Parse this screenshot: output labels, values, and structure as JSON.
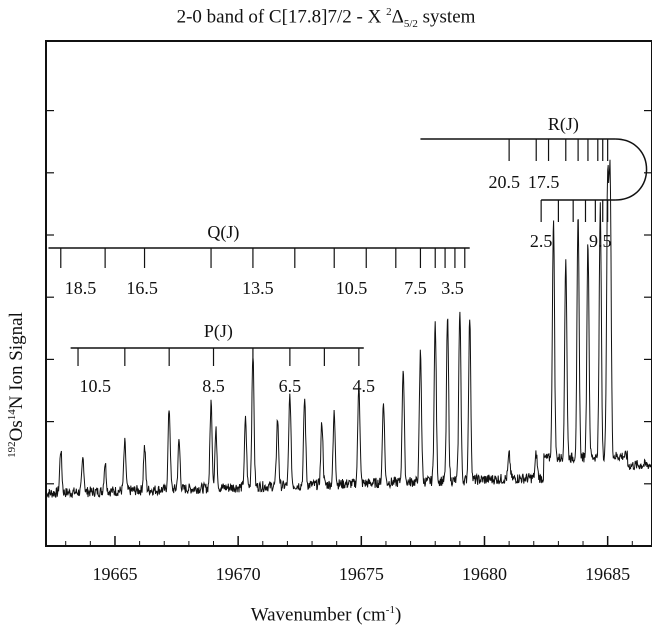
{
  "chart_data": {
    "type": "line",
    "title": {
      "prefix": "2-0 band of C[17.8]7/2 - X ",
      "sup": "2",
      "delta": "Δ",
      "sub": "5/2",
      "suffix": " system"
    },
    "xlabel": {
      "main": "Wavenumber (cm",
      "sup": "-1",
      "end": ")"
    },
    "ylabel": {
      "sup1": "192",
      "part1": "Os",
      "sup2": "14",
      "part2": "N Ion Signal"
    },
    "xlim": [
      19662.2,
      19686.8
    ],
    "x_ticks": [
      "19665",
      "19670",
      "19675",
      "19680",
      "19685"
    ],
    "grid": false,
    "peaks": [
      {
        "x": 19662.8,
        "h": 0.09
      },
      {
        "x": 19663.7,
        "h": 0.07
      },
      {
        "x": 19664.6,
        "h": 0.06
      },
      {
        "x": 19665.4,
        "h": 0.1
      },
      {
        "x": 19666.2,
        "h": 0.09
      },
      {
        "x": 19667.2,
        "h": 0.17
      },
      {
        "x": 19667.6,
        "h": 0.1
      },
      {
        "x": 19668.9,
        "h": 0.18
      },
      {
        "x": 19669.1,
        "h": 0.12
      },
      {
        "x": 19670.3,
        "h": 0.14
      },
      {
        "x": 19670.6,
        "h": 0.28
      },
      {
        "x": 19671.6,
        "h": 0.14
      },
      {
        "x": 19672.1,
        "h": 0.19
      },
      {
        "x": 19672.7,
        "h": 0.18
      },
      {
        "x": 19673.4,
        "h": 0.13
      },
      {
        "x": 19673.9,
        "h": 0.15
      },
      {
        "x": 19674.9,
        "h": 0.21
      },
      {
        "x": 19675.9,
        "h": 0.17
      },
      {
        "x": 19676.7,
        "h": 0.24
      },
      {
        "x": 19677.4,
        "h": 0.27
      },
      {
        "x": 19678.0,
        "h": 0.33
      },
      {
        "x": 19678.5,
        "h": 0.34
      },
      {
        "x": 19679.0,
        "h": 0.36
      },
      {
        "x": 19679.4,
        "h": 0.34
      },
      {
        "x": 19681.0,
        "h": 0.05
      },
      {
        "x": 19682.1,
        "h": 0.05
      },
      {
        "x": 19682.8,
        "h": 0.5
      },
      {
        "x": 19683.3,
        "h": 0.42
      },
      {
        "x": 19683.8,
        "h": 0.5
      },
      {
        "x": 19684.2,
        "h": 0.45
      },
      {
        "x": 19684.7,
        "h": 0.52
      },
      {
        "x": 19685.0,
        "h": 0.56
      },
      {
        "x": 19685.1,
        "h": 0.58
      }
    ],
    "branches": [
      {
        "name": "P(J)",
        "label_x": 19669.2,
        "labels": [
          {
            "x": 19664.2,
            "text": "10.5"
          },
          {
            "x": 19669.0,
            "text": "8.5"
          },
          {
            "x": 19672.1,
            "text": "6.5"
          },
          {
            "x": 19675.1,
            "text": "4.5"
          }
        ],
        "ticks": [
          19663.5,
          19665.4,
          19667.2,
          19669.0,
          19670.6,
          19672.1,
          19673.5,
          19674.9
        ]
      },
      {
        "name": "Q(J)",
        "label_x": 19669.4,
        "labels": [
          {
            "x": 19663.6,
            "text": "18.5"
          },
          {
            "x": 19666.1,
            "text": "16.5"
          },
          {
            "x": 19670.8,
            "text": "13.5"
          },
          {
            "x": 19674.6,
            "text": "10.5"
          },
          {
            "x": 19677.2,
            "text": "7.5"
          },
          {
            "x": 19678.7,
            "text": "3.5"
          }
        ],
        "ticks": [
          19662.8,
          19664.6,
          19666.2,
          19668.9,
          19670.6,
          19672.3,
          19673.9,
          19675.2,
          19676.4,
          19677.4,
          19678.0,
          19678.4,
          19678.8,
          19679.2
        ]
      },
      {
        "name": "R(J)",
        "label_x": 19683.2,
        "labels": [
          {
            "x": 19680.8,
            "text": "20.5"
          },
          {
            "x": 19682.4,
            "text": "17.5"
          },
          {
            "x": 19682.3,
            "text": "2.5"
          },
          {
            "x": 19684.7,
            "text": "9.5"
          }
        ],
        "ticks": [
          19681.0,
          19682.1,
          19682.6,
          19683.3,
          19683.8,
          19684.2,
          19684.6,
          19684.8,
          19685.0
        ]
      }
    ]
  }
}
